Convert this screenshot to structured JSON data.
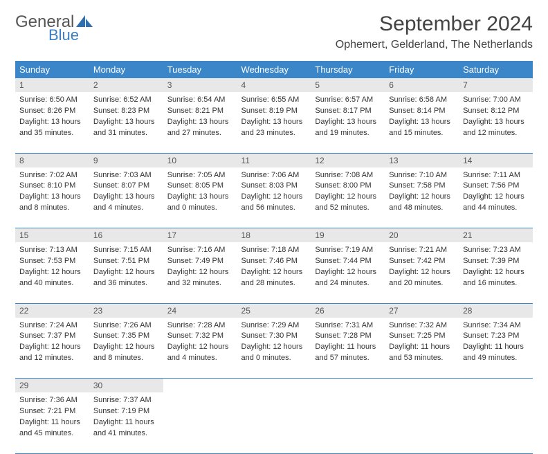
{
  "brand": {
    "part1": "General",
    "part2": "Blue"
  },
  "title": "September 2024",
  "location": "Ophemert, Gelderland, The Netherlands",
  "weekdays": [
    "Sunday",
    "Monday",
    "Tuesday",
    "Wednesday",
    "Thursday",
    "Friday",
    "Saturday"
  ],
  "colors": {
    "header_bg": "#3a86c8",
    "daynum_bg": "#e8e8e8",
    "border": "#3a86c8",
    "brand_blue": "#3a7fc4"
  },
  "days": [
    {
      "n": "1",
      "sr": "Sunrise: 6:50 AM",
      "ss": "Sunset: 8:26 PM",
      "dl1": "Daylight: 13 hours",
      "dl2": "and 35 minutes."
    },
    {
      "n": "2",
      "sr": "Sunrise: 6:52 AM",
      "ss": "Sunset: 8:23 PM",
      "dl1": "Daylight: 13 hours",
      "dl2": "and 31 minutes."
    },
    {
      "n": "3",
      "sr": "Sunrise: 6:54 AM",
      "ss": "Sunset: 8:21 PM",
      "dl1": "Daylight: 13 hours",
      "dl2": "and 27 minutes."
    },
    {
      "n": "4",
      "sr": "Sunrise: 6:55 AM",
      "ss": "Sunset: 8:19 PM",
      "dl1": "Daylight: 13 hours",
      "dl2": "and 23 minutes."
    },
    {
      "n": "5",
      "sr": "Sunrise: 6:57 AM",
      "ss": "Sunset: 8:17 PM",
      "dl1": "Daylight: 13 hours",
      "dl2": "and 19 minutes."
    },
    {
      "n": "6",
      "sr": "Sunrise: 6:58 AM",
      "ss": "Sunset: 8:14 PM",
      "dl1": "Daylight: 13 hours",
      "dl2": "and 15 minutes."
    },
    {
      "n": "7",
      "sr": "Sunrise: 7:00 AM",
      "ss": "Sunset: 8:12 PM",
      "dl1": "Daylight: 13 hours",
      "dl2": "and 12 minutes."
    },
    {
      "n": "8",
      "sr": "Sunrise: 7:02 AM",
      "ss": "Sunset: 8:10 PM",
      "dl1": "Daylight: 13 hours",
      "dl2": "and 8 minutes."
    },
    {
      "n": "9",
      "sr": "Sunrise: 7:03 AM",
      "ss": "Sunset: 8:07 PM",
      "dl1": "Daylight: 13 hours",
      "dl2": "and 4 minutes."
    },
    {
      "n": "10",
      "sr": "Sunrise: 7:05 AM",
      "ss": "Sunset: 8:05 PM",
      "dl1": "Daylight: 13 hours",
      "dl2": "and 0 minutes."
    },
    {
      "n": "11",
      "sr": "Sunrise: 7:06 AM",
      "ss": "Sunset: 8:03 PM",
      "dl1": "Daylight: 12 hours",
      "dl2": "and 56 minutes."
    },
    {
      "n": "12",
      "sr": "Sunrise: 7:08 AM",
      "ss": "Sunset: 8:00 PM",
      "dl1": "Daylight: 12 hours",
      "dl2": "and 52 minutes."
    },
    {
      "n": "13",
      "sr": "Sunrise: 7:10 AM",
      "ss": "Sunset: 7:58 PM",
      "dl1": "Daylight: 12 hours",
      "dl2": "and 48 minutes."
    },
    {
      "n": "14",
      "sr": "Sunrise: 7:11 AM",
      "ss": "Sunset: 7:56 PM",
      "dl1": "Daylight: 12 hours",
      "dl2": "and 44 minutes."
    },
    {
      "n": "15",
      "sr": "Sunrise: 7:13 AM",
      "ss": "Sunset: 7:53 PM",
      "dl1": "Daylight: 12 hours",
      "dl2": "and 40 minutes."
    },
    {
      "n": "16",
      "sr": "Sunrise: 7:15 AM",
      "ss": "Sunset: 7:51 PM",
      "dl1": "Daylight: 12 hours",
      "dl2": "and 36 minutes."
    },
    {
      "n": "17",
      "sr": "Sunrise: 7:16 AM",
      "ss": "Sunset: 7:49 PM",
      "dl1": "Daylight: 12 hours",
      "dl2": "and 32 minutes."
    },
    {
      "n": "18",
      "sr": "Sunrise: 7:18 AM",
      "ss": "Sunset: 7:46 PM",
      "dl1": "Daylight: 12 hours",
      "dl2": "and 28 minutes."
    },
    {
      "n": "19",
      "sr": "Sunrise: 7:19 AM",
      "ss": "Sunset: 7:44 PM",
      "dl1": "Daylight: 12 hours",
      "dl2": "and 24 minutes."
    },
    {
      "n": "20",
      "sr": "Sunrise: 7:21 AM",
      "ss": "Sunset: 7:42 PM",
      "dl1": "Daylight: 12 hours",
      "dl2": "and 20 minutes."
    },
    {
      "n": "21",
      "sr": "Sunrise: 7:23 AM",
      "ss": "Sunset: 7:39 PM",
      "dl1": "Daylight: 12 hours",
      "dl2": "and 16 minutes."
    },
    {
      "n": "22",
      "sr": "Sunrise: 7:24 AM",
      "ss": "Sunset: 7:37 PM",
      "dl1": "Daylight: 12 hours",
      "dl2": "and 12 minutes."
    },
    {
      "n": "23",
      "sr": "Sunrise: 7:26 AM",
      "ss": "Sunset: 7:35 PM",
      "dl1": "Daylight: 12 hours",
      "dl2": "and 8 minutes."
    },
    {
      "n": "24",
      "sr": "Sunrise: 7:28 AM",
      "ss": "Sunset: 7:32 PM",
      "dl1": "Daylight: 12 hours",
      "dl2": "and 4 minutes."
    },
    {
      "n": "25",
      "sr": "Sunrise: 7:29 AM",
      "ss": "Sunset: 7:30 PM",
      "dl1": "Daylight: 12 hours",
      "dl2": "and 0 minutes."
    },
    {
      "n": "26",
      "sr": "Sunrise: 7:31 AM",
      "ss": "Sunset: 7:28 PM",
      "dl1": "Daylight: 11 hours",
      "dl2": "and 57 minutes."
    },
    {
      "n": "27",
      "sr": "Sunrise: 7:32 AM",
      "ss": "Sunset: 7:25 PM",
      "dl1": "Daylight: 11 hours",
      "dl2": "and 53 minutes."
    },
    {
      "n": "28",
      "sr": "Sunrise: 7:34 AM",
      "ss": "Sunset: 7:23 PM",
      "dl1": "Daylight: 11 hours",
      "dl2": "and 49 minutes."
    },
    {
      "n": "29",
      "sr": "Sunrise: 7:36 AM",
      "ss": "Sunset: 7:21 PM",
      "dl1": "Daylight: 11 hours",
      "dl2": "and 45 minutes."
    },
    {
      "n": "30",
      "sr": "Sunrise: 7:37 AM",
      "ss": "Sunset: 7:19 PM",
      "dl1": "Daylight: 11 hours",
      "dl2": "and 41 minutes."
    }
  ]
}
